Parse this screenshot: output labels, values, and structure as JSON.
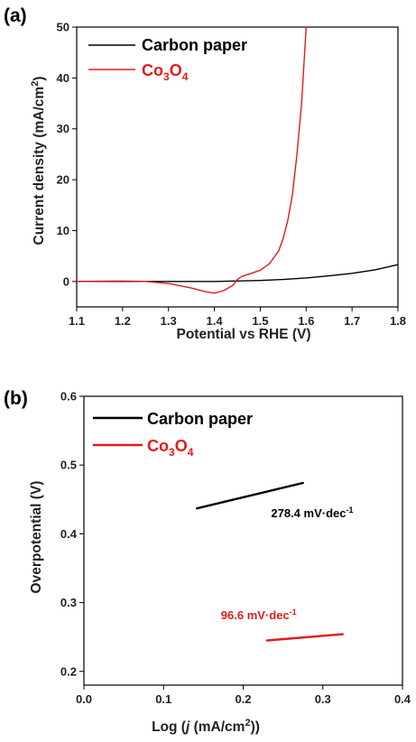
{
  "chart_data": [
    {
      "panel_label": "(a)",
      "type": "line",
      "xlabel": "Potential vs RHE (V)",
      "ylabel_text": "Current density (mA/cm",
      "ylabel_sup": "2",
      "ylabel_close": ")",
      "xlim": [
        1.1,
        1.8
      ],
      "ylim": [
        -5,
        50
      ],
      "x_ticks": [
        1.1,
        1.2,
        1.3,
        1.4,
        1.5,
        1.6,
        1.7,
        1.8
      ],
      "x_tick_labels": [
        "1.1",
        "1.2",
        "1.3",
        "1.4",
        "1.5",
        "1.6",
        "1.7",
        "1.8"
      ],
      "y_ticks": [
        0,
        10,
        20,
        30,
        40,
        50
      ],
      "y_tick_labels": [
        "0",
        "10",
        "20",
        "30",
        "40",
        "50"
      ],
      "legend_position": "top-left",
      "series": [
        {
          "name": "Carbon paper",
          "legend_main": "Carbon paper",
          "color": "#000000",
          "x": [
            1.1,
            1.2,
            1.3,
            1.4,
            1.45,
            1.5,
            1.55,
            1.6,
            1.65,
            1.7,
            1.75,
            1.8
          ],
          "y": [
            0.0,
            0.0,
            0.0,
            0.0,
            0.1,
            0.2,
            0.4,
            0.7,
            1.1,
            1.6,
            2.3,
            3.3
          ]
        },
        {
          "name": "Co3O4",
          "legend_main": "Co",
          "legend_sub1": "3",
          "legend_mid": "O",
          "legend_sub2": "4",
          "color": "#e31a1c",
          "x": [
            1.1,
            1.2,
            1.25,
            1.3,
            1.35,
            1.38,
            1.4,
            1.42,
            1.44,
            1.45,
            1.46,
            1.5,
            1.52,
            1.54,
            1.55,
            1.56,
            1.57,
            1.58,
            1.59,
            1.6
          ],
          "y": [
            0.0,
            0.1,
            0.0,
            -0.4,
            -1.3,
            -2.0,
            -2.3,
            -1.8,
            -0.8,
            0.4,
            1.0,
            2.2,
            3.5,
            6.0,
            8.5,
            12.0,
            17.0,
            25.0,
            35.0,
            50.0
          ]
        }
      ]
    },
    {
      "panel_label": "(b)",
      "type": "line",
      "xlabel_pre": "Log (",
      "xlabel_j": "j",
      "xlabel_mid": " (mA/cm",
      "xlabel_sup": "2",
      "xlabel_close": "))",
      "ylabel": "Overpotential (V)",
      "xlim": [
        0.0,
        0.4
      ],
      "ylim": [
        0.18,
        0.6
      ],
      "x_ticks": [
        0.0,
        0.1,
        0.2,
        0.3,
        0.4
      ],
      "x_tick_labels": [
        "0.0",
        "0.1",
        "0.2",
        "0.3",
        "0.4"
      ],
      "y_ticks": [
        0.2,
        0.3,
        0.4,
        0.5,
        0.6
      ],
      "y_tick_labels": [
        "0.2",
        "0.3",
        "0.4",
        "0.5",
        "0.6"
      ],
      "legend_position": "top-left",
      "series": [
        {
          "name": "Carbon paper",
          "legend_main": "Carbon paper",
          "color": "#000000",
          "x": [
            0.142,
            0.275
          ],
          "y": [
            0.437,
            0.474
          ],
          "annotation": {
            "text": "278.4 mV·dec",
            "sup": "-1",
            "x": 0.235,
            "y": 0.424,
            "color": "#000000"
          }
        },
        {
          "name": "Co3O4",
          "legend_main": "Co",
          "legend_sub1": "3",
          "legend_mid": "O",
          "legend_sub2": "4",
          "color": "#e31a1c",
          "x": [
            0.23,
            0.325
          ],
          "y": [
            0.245,
            0.254
          ],
          "annotation": {
            "text": "96.6 mV·dec",
            "sup": "-1",
            "x": 0.172,
            "y": 0.276,
            "color": "#e31a1c"
          }
        }
      ]
    }
  ]
}
